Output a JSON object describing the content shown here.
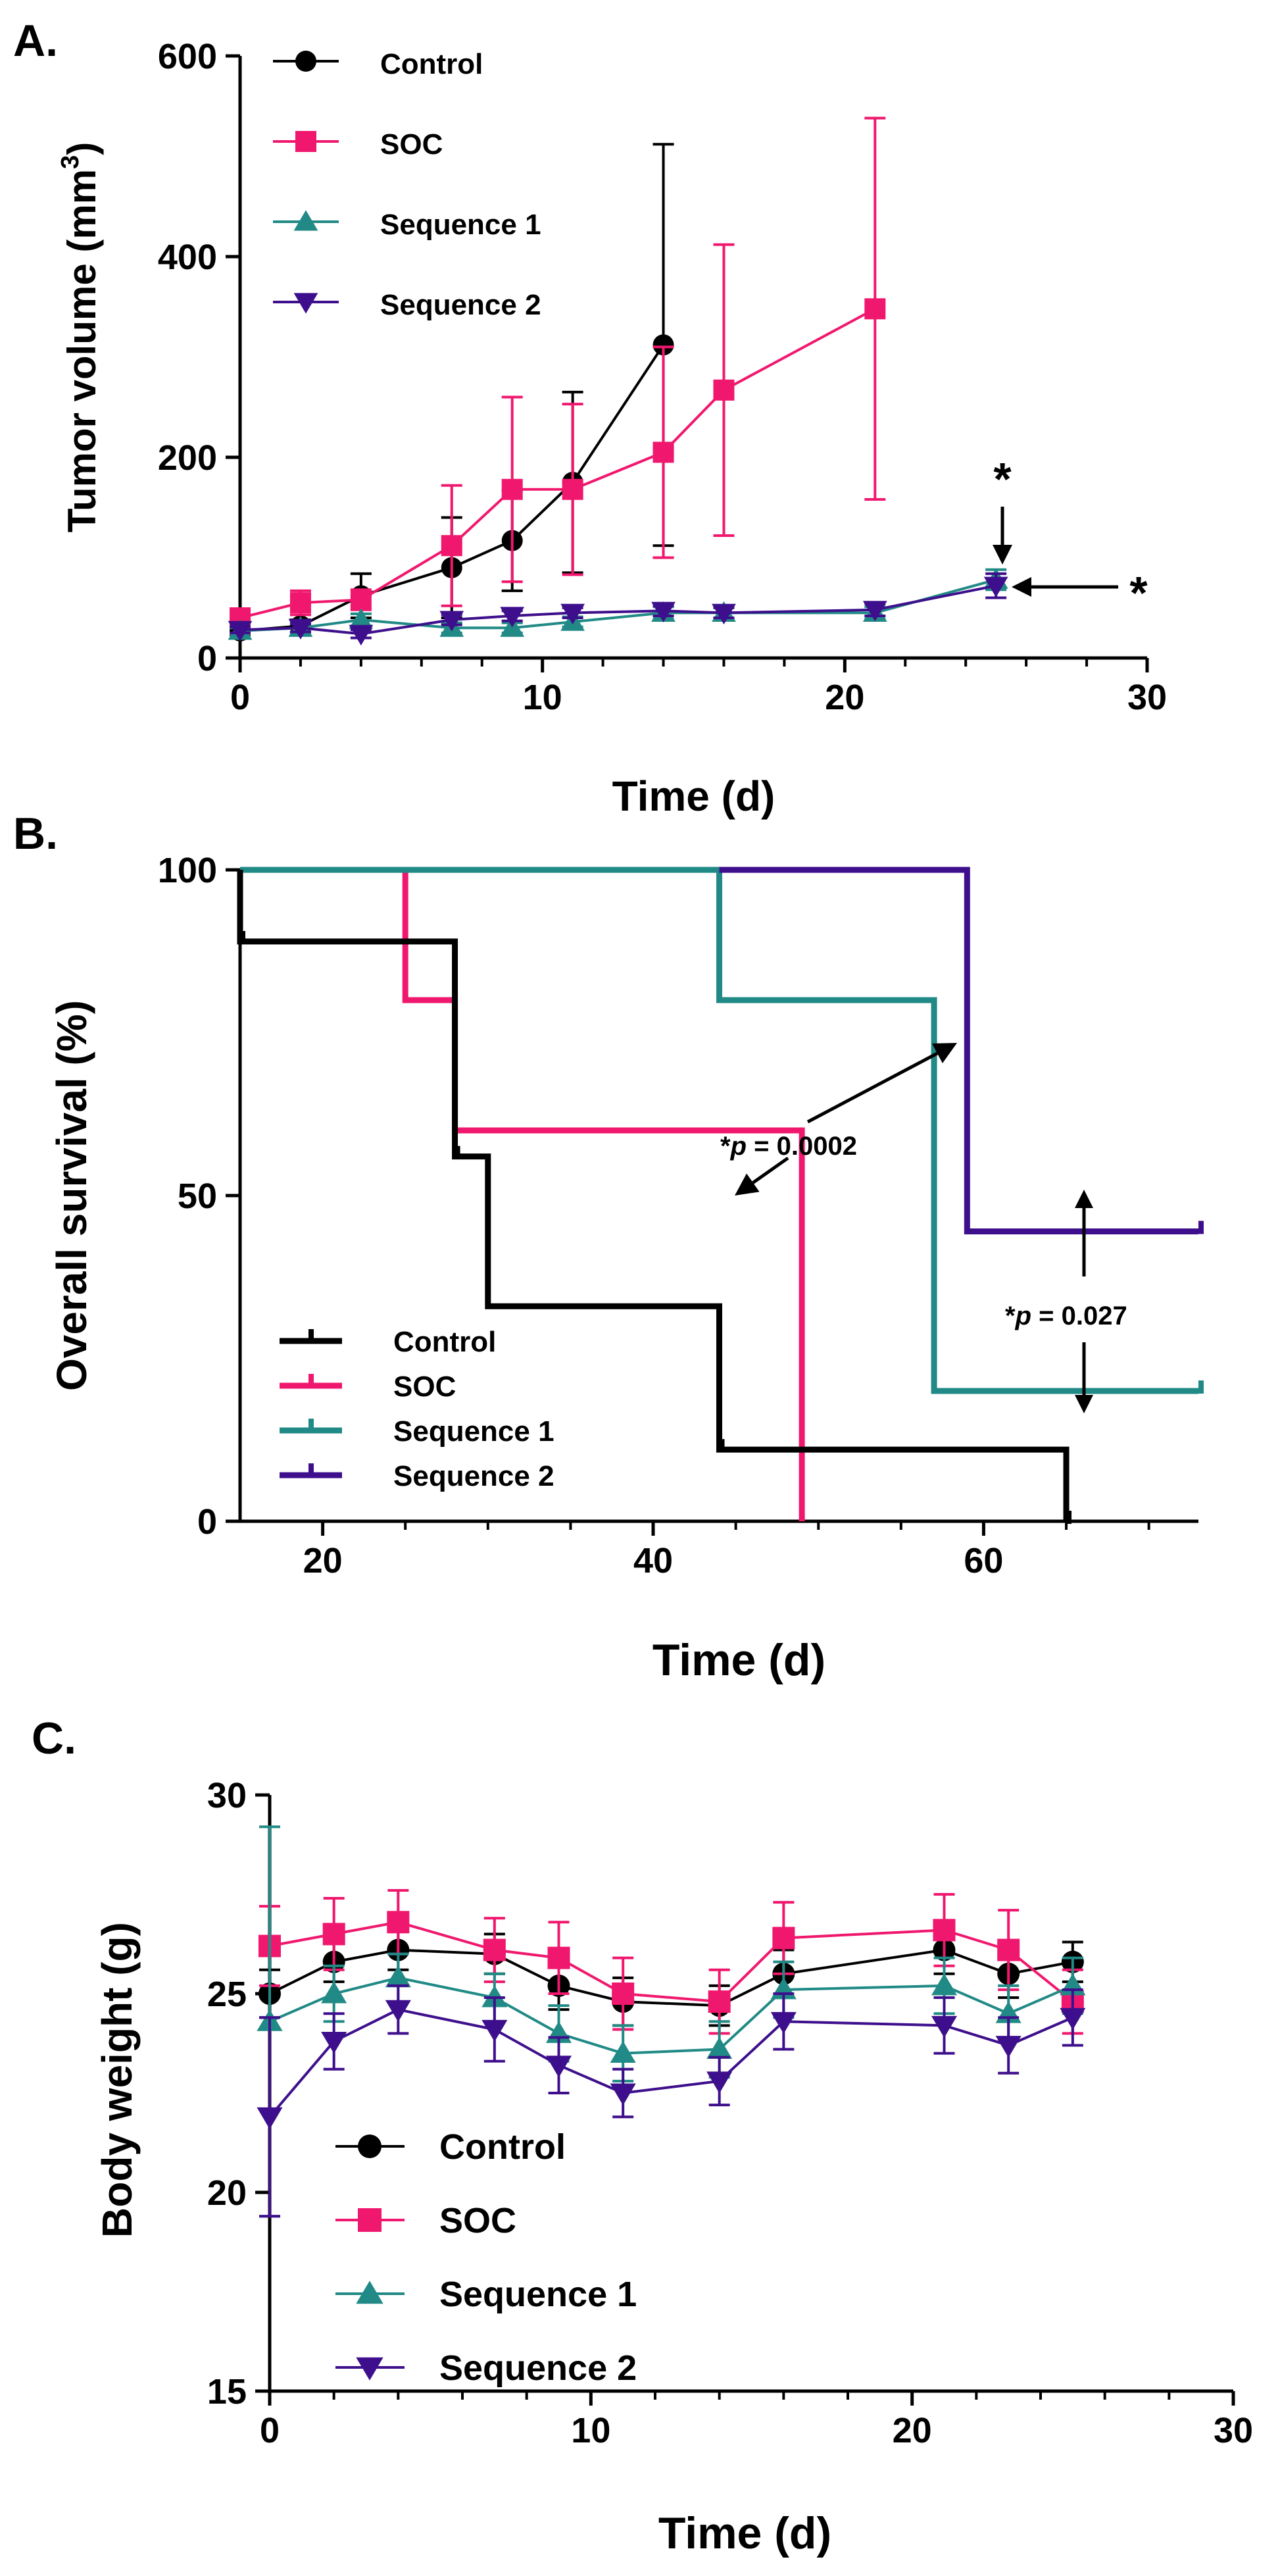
{
  "colors": {
    "control": "#000000",
    "soc": "#f0186e",
    "sequence1": "#218a86",
    "sequence2": "#3e0f8c"
  },
  "chart_data": [
    {
      "panel": "A.",
      "type": "line",
      "xlabel": "Time (d)",
      "ylabel": "Tumor volume (mm",
      "ylabel_sup": "3",
      "ylabel_close": ")",
      "xlim": [
        0,
        30
      ],
      "ylim": [
        0,
        600
      ],
      "xticks": [
        "0",
        "10",
        "20",
        "30"
      ],
      "yticks": [
        "0",
        "200",
        "400",
        "600"
      ],
      "legend": [
        "Control",
        "SOC",
        "Sequence 1",
        "Sequence 2"
      ],
      "annotations": [
        "*",
        "*"
      ],
      "series": [
        {
          "name": "Control",
          "color_key": "control",
          "marker": "circle",
          "x": [
            0,
            2,
            4,
            7,
            9,
            11,
            14
          ],
          "y": [
            27,
            32,
            62,
            90,
            117,
            175,
            312
          ],
          "err": [
            4,
            6,
            22,
            50,
            50,
            90,
            200
          ]
        },
        {
          "name": "SOC",
          "color_key": "soc",
          "marker": "square",
          "x": [
            0,
            2,
            4,
            7,
            9,
            11,
            14,
            16,
            21
          ],
          "y": [
            40,
            55,
            58,
            112,
            168,
            168,
            205,
            267,
            348
          ],
          "err": [
            5,
            12,
            10,
            60,
            92,
            85,
            105,
            145,
            190
          ]
        },
        {
          "name": "Sequence 1",
          "color_key": "sequence1",
          "marker": "triangle-up",
          "x": [
            0,
            2,
            4,
            7,
            9,
            11,
            14,
            16,
            21,
            25
          ],
          "y": [
            27,
            30,
            38,
            30,
            30,
            36,
            45,
            45,
            45,
            78
          ],
          "err": [
            3,
            5,
            6,
            5,
            5,
            5,
            6,
            6,
            6,
            10
          ]
        },
        {
          "name": "Sequence 2",
          "color_key": "sequence2",
          "marker": "triangle-down",
          "x": [
            0,
            2,
            4,
            7,
            9,
            11,
            14,
            16,
            21,
            25
          ],
          "y": [
            28,
            30,
            24,
            38,
            42,
            45,
            47,
            45,
            48,
            72
          ],
          "err": [
            3,
            4,
            4,
            5,
            5,
            5,
            5,
            5,
            6,
            12
          ]
        }
      ]
    },
    {
      "panel": "B.",
      "type": "step",
      "xlabel": "Time (d)",
      "ylabel": "Overall survival (%)",
      "xlim": [
        15,
        73
      ],
      "ylim": [
        0,
        100
      ],
      "xticks": [
        "20",
        "40",
        "60"
      ],
      "yticks": [
        "0",
        "50",
        "100"
      ],
      "legend": [
        "Control",
        "SOC",
        "Sequence 1",
        "Sequence 2"
      ],
      "annotations": [
        {
          "star": "*",
          "p": "p",
          "value": " = 0.0002"
        },
        {
          "star": "*",
          "p": "p",
          "value": " = 0.027"
        }
      ],
      "series": [
        {
          "name": "Control",
          "color_key": "control",
          "steps": [
            [
              15,
              100
            ],
            [
              15,
              89
            ],
            [
              28,
              89
            ],
            [
              28,
              56
            ],
            [
              30,
              56
            ],
            [
              30,
              33
            ],
            [
              44,
              33
            ],
            [
              44,
              11
            ],
            [
              65,
              11
            ],
            [
              65,
              0
            ]
          ]
        },
        {
          "name": "SOC",
          "color_key": "soc",
          "steps": [
            [
              15,
              100
            ],
            [
              25,
              100
            ],
            [
              25,
              80
            ],
            [
              28,
              80
            ],
            [
              28,
              60
            ],
            [
              49,
              60
            ],
            [
              49,
              0
            ]
          ]
        },
        {
          "name": "Sequence 1",
          "color_key": "sequence1",
          "steps": [
            [
              15,
              100
            ],
            [
              44,
              100
            ],
            [
              44,
              80
            ],
            [
              57,
              80
            ],
            [
              57,
              20
            ],
            [
              73,
              20
            ]
          ]
        },
        {
          "name": "Sequence 2",
          "color_key": "sequence2",
          "steps": [
            [
              44,
              100
            ],
            [
              59,
              100
            ],
            [
              59,
              44.5
            ],
            [
              73,
              44.5
            ]
          ]
        }
      ],
      "censor": [
        {
          "series": 0,
          "points": [
            [
              15,
              89
            ],
            [
              28,
              56
            ],
            [
              44,
              11
            ],
            [
              65,
              0
            ]
          ]
        },
        {
          "series": 2,
          "points": [
            [
              73,
              20
            ]
          ]
        },
        {
          "series": 3,
          "points": [
            [
              73,
              44.5
            ]
          ]
        }
      ]
    },
    {
      "panel": "C.",
      "type": "line",
      "xlabel": "Time (d)",
      "ylabel": "Body weight (g)",
      "xlim": [
        0,
        30
      ],
      "ylim": [
        15,
        30
      ],
      "xticks": [
        "0",
        "10",
        "20",
        "30"
      ],
      "yticks": [
        "15",
        "20",
        "25",
        "30"
      ],
      "legend": [
        "Control",
        "SOC",
        "Sequence 1",
        "Sequence 2"
      ],
      "series": [
        {
          "name": "Control",
          "color_key": "control",
          "marker": "circle",
          "x": [
            0,
            2,
            4,
            7,
            9,
            11,
            14,
            16,
            21,
            23,
            25
          ],
          "y": [
            25.0,
            25.8,
            26.1,
            26.0,
            25.2,
            24.8,
            24.7,
            25.5,
            26.1,
            25.5,
            25.8
          ],
          "err": [
            0.6,
            0.5,
            0.5,
            0.5,
            0.6,
            0.6,
            0.5,
            0.6,
            0.6,
            0.6,
            0.5
          ]
        },
        {
          "name": "SOC",
          "color_key": "soc",
          "marker": "square",
          "x": [
            0,
            2,
            4,
            7,
            9,
            11,
            14,
            16,
            21,
            23,
            25
          ],
          "y": [
            26.2,
            26.5,
            26.8,
            26.1,
            25.9,
            25.0,
            24.8,
            26.4,
            26.6,
            26.1,
            24.8
          ],
          "err": [
            1.0,
            0.9,
            0.8,
            0.8,
            0.9,
            0.9,
            0.8,
            0.9,
            0.9,
            1.0,
            0.8
          ]
        },
        {
          "name": "Sequence 1",
          "color_key": "sequence1",
          "marker": "triangle-up",
          "x": [
            0,
            2,
            4,
            7,
            9,
            11,
            14,
            16,
            21,
            23,
            25
          ],
          "y": [
            24.3,
            25.0,
            25.4,
            24.9,
            24.0,
            23.5,
            23.6,
            25.1,
            25.2,
            24.5,
            25.2
          ],
          "err": [
            4.9,
            0.7,
            0.6,
            0.6,
            0.7,
            0.7,
            0.7,
            0.7,
            0.7,
            0.7,
            0.7
          ]
        },
        {
          "name": "Sequence 2",
          "color_key": "sequence2",
          "marker": "triangle-down",
          "x": [
            0,
            2,
            4,
            7,
            9,
            11,
            14,
            16,
            21,
            23,
            25
          ],
          "y": [
            21.9,
            23.8,
            24.6,
            24.1,
            23.2,
            22.5,
            22.8,
            24.3,
            24.2,
            23.7,
            24.4
          ],
          "err": [
            2.5,
            0.7,
            0.6,
            0.8,
            0.7,
            0.6,
            0.6,
            0.7,
            0.7,
            0.7,
            0.7
          ]
        }
      ]
    }
  ]
}
